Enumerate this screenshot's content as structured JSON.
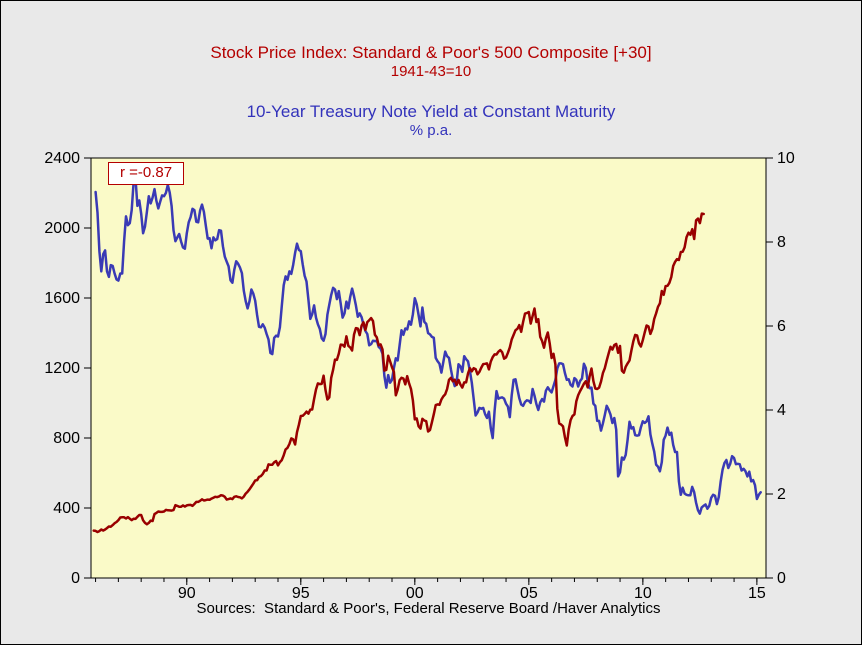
{
  "header": {
    "title_primary": "Stock Price Index: Standard & Poor's 500 Composite [+30]",
    "subtitle_primary": "1941-43=10",
    "title_secondary": "10-Year Treasury Note Yield at Constant Maturity",
    "subtitle_secondary": "% p.a."
  },
  "legend": {
    "correlation_label": "r =-0.87"
  },
  "footer": {
    "source_label": "Sources:  Standard & Poor's, Federal Reserve Board /Haver Analytics"
  },
  "colors": {
    "page_background": "#e9e9e9",
    "plot_background": "#fafac8",
    "border": "#000000",
    "axis_text": "#000000",
    "title_red": "#b40000",
    "title_blue": "#3333bb"
  },
  "chart_data": {
    "type": "line",
    "title": "Stock Price Index: Standard & Poor's 500 Composite [+30] vs 10-Year Treasury Note Yield at Constant Maturity",
    "correlation": -0.87,
    "grid": false,
    "legend_position": "top-left",
    "x_axis": {
      "min": 1985.8,
      "max": 2015.4,
      "minor_tick_interval": 1,
      "major_ticks": [
        {
          "value": 1990,
          "label": "90"
        },
        {
          "value": 1995,
          "label": "95"
        },
        {
          "value": 2000,
          "label": "00"
        },
        {
          "value": 2005,
          "label": "05"
        },
        {
          "value": 2010,
          "label": "10"
        },
        {
          "value": 2015,
          "label": "15"
        }
      ]
    },
    "left_axis": {
      "series": "S&P 500 Composite (1941-43=10)",
      "min": 0,
      "max": 2400,
      "ticks": [
        0,
        400,
        800,
        1200,
        1600,
        2000,
        2400
      ]
    },
    "right_axis": {
      "series": "10-Year Treasury Note Yield (% p.a.)",
      "min": 0,
      "max": 10,
      "ticks": [
        0,
        2,
        4,
        6,
        8,
        10
      ]
    },
    "series": [
      {
        "id": "treasury-yield",
        "name": "10-Year Treasury Note Yield at Constant Maturity (% p.a.)",
        "axis": "right",
        "color": "#3a3ab5",
        "x_start": 1986.0,
        "x_step": 0.08333,
        "values": [
          9.19,
          8.7,
          7.78,
          7.3,
          7.71,
          7.8,
          7.3,
          7.17,
          7.45,
          7.43,
          7.25,
          7.11,
          7.08,
          7.25,
          7.25,
          8.02,
          8.61,
          8.4,
          8.45,
          8.76,
          9.42,
          9.52,
          8.86,
          8.99,
          8.67,
          8.21,
          8.37,
          8.72,
          9.09,
          8.92,
          9.06,
          9.26,
          8.98,
          8.8,
          8.96,
          9.11,
          9.09,
          9.17,
          9.36,
          9.18,
          8.86,
          8.28,
          8.02,
          8.11,
          8.19,
          8.01,
          7.87,
          7.84,
          8.21,
          8.47,
          8.59,
          8.79,
          8.76,
          8.48,
          8.47,
          8.75,
          8.89,
          8.72,
          8.39,
          8.08,
          8.09,
          7.85,
          8.11,
          8.04,
          8.07,
          8.28,
          8.27,
          7.9,
          7.65,
          7.53,
          7.42,
          7.09,
          7.03,
          7.34,
          7.54,
          7.48,
          7.39,
          7.26,
          6.84,
          6.59,
          6.42,
          6.59,
          6.87,
          6.77,
          6.6,
          6.26,
          5.98,
          5.97,
          6.04,
          5.96,
          5.81,
          5.68,
          5.36,
          5.33,
          5.72,
          5.77,
          5.75,
          5.97,
          6.48,
          6.97,
          7.18,
          7.1,
          7.3,
          7.24,
          7.46,
          7.74,
          7.96,
          7.81,
          7.78,
          7.47,
          7.2,
          7.06,
          6.63,
          6.17,
          6.28,
          6.49,
          6.2,
          6.04,
          5.93,
          5.71,
          5.65,
          5.81,
          6.27,
          6.51,
          6.74,
          6.91,
          6.87,
          6.64,
          6.83,
          6.53,
          6.2,
          6.3,
          6.58,
          6.42,
          6.69,
          6.89,
          6.71,
          6.49,
          6.22,
          6.3,
          6.21,
          6.03,
          5.88,
          5.81,
          5.54,
          5.57,
          5.65,
          5.64,
          5.65,
          5.5,
          5.46,
          5.34,
          4.81,
          4.53,
          4.83,
          4.65,
          4.72,
          5.0,
          5.23,
          5.18,
          5.54,
          5.9,
          5.79,
          5.94,
          5.92,
          6.11,
          6.03,
          6.28,
          6.66,
          6.52,
          6.26,
          5.99,
          6.44,
          6.1,
          6.05,
          5.83,
          5.8,
          5.74,
          5.72,
          5.24,
          5.16,
          5.1,
          4.89,
          5.14,
          5.39,
          5.28,
          5.24,
          4.97,
          4.73,
          4.57,
          4.65,
          5.09,
          5.04,
          4.91,
          5.28,
          5.21,
          5.16,
          4.93,
          4.65,
          4.26,
          3.87,
          3.94,
          4.05,
          4.03,
          4.05,
          3.9,
          3.81,
          3.96,
          3.57,
          3.33,
          3.98,
          4.45,
          4.27,
          4.29,
          4.3,
          4.27,
          4.15,
          4.08,
          3.83,
          4.35,
          4.72,
          4.73,
          4.5,
          4.28,
          4.13,
          4.1,
          4.19,
          4.23,
          4.22,
          4.17,
          4.5,
          4.34,
          4.14,
          4.0,
          4.18,
          4.26,
          4.2,
          4.46,
          4.54,
          4.47,
          4.42,
          4.57,
          4.72,
          4.99,
          5.11,
          5.11,
          5.09,
          4.88,
          4.72,
          4.73,
          4.6,
          4.56,
          4.76,
          4.72,
          4.56,
          4.69,
          4.75,
          5.1,
          5.0,
          4.67,
          4.52,
          4.53,
          4.15,
          4.1,
          3.74,
          3.74,
          3.51,
          3.68,
          3.88,
          4.1,
          4.01,
          3.89,
          3.69,
          3.81,
          3.53,
          2.42,
          2.52,
          2.87,
          2.82,
          2.93,
          3.29,
          3.72,
          3.56,
          3.59,
          3.4,
          3.39,
          3.4,
          3.59,
          3.73,
          3.69,
          3.73,
          3.85,
          3.42,
          3.2,
          3.01,
          2.7,
          2.65,
          2.54,
          2.76,
          3.29,
          3.39,
          3.58,
          3.41,
          3.46,
          3.17,
          3.0,
          3.0,
          2.3,
          1.98,
          2.15,
          2.01,
          1.98,
          1.97,
          1.97,
          2.17,
          2.05,
          1.8,
          1.62,
          1.53,
          1.68,
          1.72,
          1.75,
          1.65,
          1.72,
          1.91,
          1.98,
          1.96,
          1.76,
          1.93,
          2.3,
          2.58,
          2.74,
          2.81,
          2.62,
          2.72,
          2.9,
          2.86,
          2.71,
          2.72,
          2.71,
          2.56,
          2.6,
          2.54,
          2.42,
          2.53,
          2.3,
          2.33,
          2.21,
          1.88,
          1.98,
          2.04
        ]
      },
      {
        "id": "sp500",
        "name": "Stock Price Index: Standard & Poor's 500 Composite, shifted +30 months (1941-43=10)",
        "axis": "left",
        "color": "#990000",
        "x_start": 1985.917,
        "x_step": 0.08333,
        "values": [
          271,
          269,
          263,
          268,
          277,
          271,
          277,
          285,
          294,
          293,
          302,
          313,
          320,
          331,
          346,
          347,
          347,
          340,
          348,
          339,
          331,
          339,
          338,
          350,
          360,
          360,
          330,
          315,
          307,
          315,
          328,
          326,
          365,
          372,
          380,
          378,
          378,
          380,
          389,
          387,
          386,
          385,
          388,
          416,
          412,
          407,
          407,
          415,
          408,
          415,
          417,
          418,
          412,
          423,
          435,
          435,
          441,
          450,
          443,
          445,
          448,
          447,
          454,
          459,
          464,
          462,
          466,
          473,
          471,
          464,
          448,
          451,
          455,
          451,
          464,
          467,
          463,
          461,
          455,
          465,
          482,
          493,
          507,
          523,
          539,
          557,
          559,
          578,
          582,
          595,
          614,
          614,
          649,
          647,
          647,
          661,
          668,
          644,
          662,
          674,
          701,
          735,
          744,
          766,
          798,
          792,
          763,
          833,
          876,
          926,
          927,
          937,
          951,
          939,
          962,
          963,
          1023,
          1077,
          1112,
          1108,
          1109,
          1156,
          1074,
          1020,
          1032,
          1144,
          1190,
          1248,
          1246,
          1282,
          1334,
          1332,
          1322,
          1381,
          1327,
          1318,
          1300,
          1391,
          1428,
          1425,
          1388,
          1442,
          1461,
          1418,
          1462,
          1473,
          1485,
          1468,
          1390,
          1375,
          1330,
          1335,
          1306,
          1185,
          1190,
          1270,
          1238,
          1204,
          1178,
          1044,
          1077,
          1130,
          1144,
          1140,
          1107,
          1153,
          1112,
          1080,
          1014,
          906,
          912,
          867,
          854,
          910,
          900,
          896,
          837,
          846,
          890,
          936,
          988,
          992,
          990,
          1020,
          1038,
          1050,
          1080,
          1132,
          1144,
          1124,
          1133,
          1103,
          1132,
          1106,
          1088,
          1118,
          1118,
          1168,
          1199,
          1181,
          1199,
          1194,
          1164,
          1178,
          1202,
          1222,
          1224,
          1226,
          1192,
          1237,
          1262,
          1278,
          1277,
          1293,
          1302,
          1290,
          1253,
          1260,
          1287,
          1318,
          1363,
          1389,
          1416,
          1424,
          1445,
          1407,
          1463,
          1511,
          1514,
          1520,
          1454,
          1497,
          1540,
          1463,
          1479,
          1378,
          1354,
          1316,
          1370,
          1403,
          1341,
          1257,
          1281,
          1220,
          968,
          883,
          877,
          866,
          805,
          757,
          848,
          902,
          926,
          935,
          1009,
          1045,
          1068,
          1088,
          1110,
          1124,
          1089,
          1152,
          1197,
          1125,
          1083,
          1080,
          1088,
          1122,
          1171,
          1199,
          1242,
          1282,
          1321,
          1305,
          1331,
          1338,
          1287,
          1326,
          1185,
          1173,
          1207,
          1226,
          1243,
          1300,
          1352,
          1389,
          1386,
          1341,
          1323,
          1359,
          1403,
          1443,
          1437,
          1395,
          1422,
          1480,
          1512,
          1550,
          1570,
          1640,
          1618,
          1668,
          1670,
          1687,
          1720,
          1783,
          1807,
          1822,
          1817,
          1863,
          1864,
          1889,
          1947,
          1973,
          1961,
          1993,
          1937,
          2044,
          2054,
          2028,
          2082,
          2080
        ]
      }
    ]
  }
}
